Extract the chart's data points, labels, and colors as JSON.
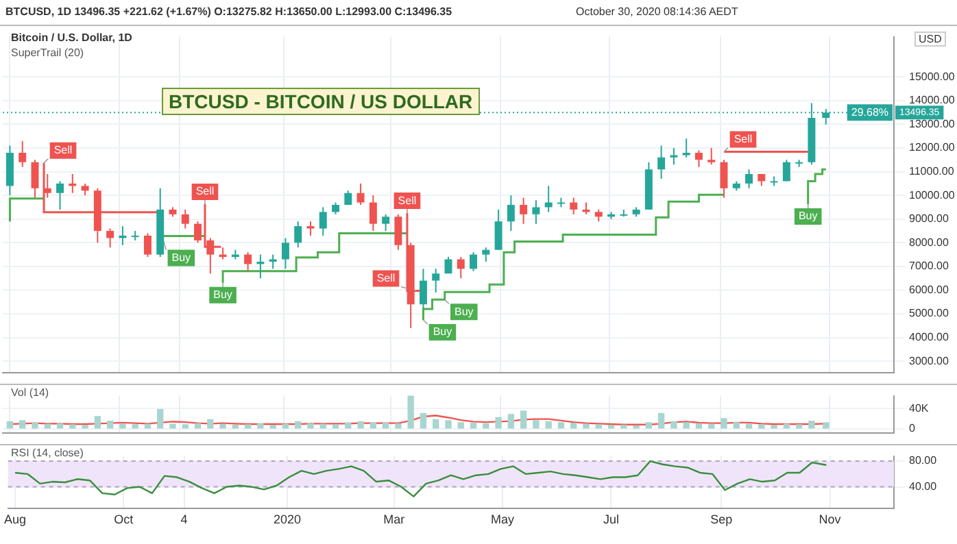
{
  "chart_data": [
    {
      "type": "candlestick",
      "title": "BTCUSD - BITCOIN / US DOLLAR",
      "subtitle": "Bitcoin / U.S. Dollar, 1D",
      "ylabel": "USD",
      "annotations": [
        "BTCUSD, 1D 13496.35 +221.62 (+1.67%) O:13275.82 H:13650.00 L:12993.00 C:13496.35",
        "October 30, 2020 08:14:36 AEDT",
        "SuperTrail (20)",
        {
          "text": "Sell",
          "x": "2019-08-20",
          "y": 11370
        },
        {
          "text": "Buy",
          "x": "2019-10-25",
          "y": 8280
        },
        {
          "text": "Sell",
          "x": "2019-11-18",
          "y": 9630
        },
        {
          "text": "Buy",
          "x": "2019-11-28",
          "y": 6310
        },
        {
          "text": "Sell",
          "x": "2020-03-10",
          "y": 9250
        },
        {
          "text": "Sell",
          "x": "2020-03-15",
          "y": 5970
        },
        {
          "text": "Buy",
          "x": "2020-03-19",
          "y": 4740
        },
        {
          "text": "Buy",
          "x": "2020-03-31",
          "y": 5600
        },
        {
          "text": "Sell",
          "x": "2020-09-03",
          "y": 11840
        },
        {
          "text": "Buy",
          "x": "2020-10-20",
          "y": 9630
        },
        {
          "text": "29.68%",
          "y": 13496.35
        }
      ],
      "x": [
        "2019-08-01",
        "2019-08-08",
        "2019-08-15",
        "2019-08-22",
        "2019-08-29",
        "2019-09-05",
        "2019-09-12",
        "2019-09-19",
        "2019-09-26",
        "2019-10-03",
        "2019-10-10",
        "2019-10-17",
        "2019-10-24",
        "2019-10-31",
        "2019-11-07",
        "2019-11-14",
        "2019-11-21",
        "2019-11-28",
        "2019-12-05",
        "2019-12-12",
        "2019-12-19",
        "2019-12-26",
        "2020-01-02",
        "2020-01-09",
        "2020-01-16",
        "2020-01-23",
        "2020-01-30",
        "2020-02-06",
        "2020-02-13",
        "2020-02-20",
        "2020-02-27",
        "2020-03-05",
        "2020-03-12",
        "2020-03-19",
        "2020-03-26",
        "2020-04-02",
        "2020-04-09",
        "2020-04-16",
        "2020-04-23",
        "2020-04-30",
        "2020-05-07",
        "2020-05-14",
        "2020-05-21",
        "2020-05-28",
        "2020-06-04",
        "2020-06-11",
        "2020-06-18",
        "2020-06-25",
        "2020-07-02",
        "2020-07-09",
        "2020-07-16",
        "2020-07-23",
        "2020-07-30",
        "2020-08-06",
        "2020-08-13",
        "2020-08-20",
        "2020-08-27",
        "2020-09-03",
        "2020-09-10",
        "2020-09-17",
        "2020-09-24",
        "2020-10-01",
        "2020-10-08",
        "2020-10-15",
        "2020-10-22",
        "2020-10-30"
      ],
      "ohlc": [
        [
          10400,
          12100,
          10000,
          11800
        ],
        [
          11800,
          12300,
          11200,
          11400
        ],
        [
          11400,
          11500,
          9900,
          10300
        ],
        [
          10300,
          10900,
          9900,
          10100
        ],
        [
          10100,
          10600,
          9400,
          10500
        ],
        [
          10500,
          10900,
          10100,
          10400
        ],
        [
          10400,
          10500,
          10000,
          10200
        ],
        [
          10200,
          10300,
          8000,
          8500
        ],
        [
          8500,
          8600,
          7800,
          8200
        ],
        [
          8200,
          8700,
          7900,
          8300
        ],
        [
          8300,
          8500,
          8100,
          8300
        ],
        [
          8300,
          8400,
          7400,
          7500
        ],
        [
          7500,
          10300,
          7400,
          9400
        ],
        [
          9400,
          9500,
          9100,
          9200
        ],
        [
          9200,
          9400,
          8600,
          8800
        ],
        [
          8800,
          8900,
          8000,
          8100
        ],
        [
          8100,
          8200,
          6700,
          7500
        ],
        [
          7500,
          7800,
          7300,
          7400
        ],
        [
          7400,
          7700,
          7300,
          7500
        ],
        [
          7500,
          7600,
          6800,
          7100
        ],
        [
          7100,
          7500,
          6500,
          7200
        ],
        [
          7200,
          7500,
          6900,
          7300
        ],
        [
          7300,
          8200,
          6900,
          8000
        ],
        [
          8000,
          8900,
          7800,
          8700
        ],
        [
          8700,
          8900,
          8300,
          8600
        ],
        [
          8600,
          9500,
          8300,
          9300
        ],
        [
          9300,
          9700,
          9200,
          9600
        ],
        [
          9600,
          10200,
          9600,
          10100
        ],
        [
          10100,
          10500,
          9600,
          9700
        ],
        [
          9700,
          10000,
          8500,
          8800
        ],
        [
          8800,
          9200,
          8500,
          9100
        ],
        [
          9100,
          9200,
          7700,
          7900
        ],
        [
          7900,
          8000,
          4400,
          5400
        ],
        [
          5400,
          6900,
          5200,
          6400
        ],
        [
          6400,
          6900,
          5900,
          6700
        ],
        [
          6700,
          7400,
          6700,
          7300
        ],
        [
          7300,
          7400,
          6500,
          6900
        ],
        [
          6900,
          7600,
          6800,
          7500
        ],
        [
          7500,
          7800,
          7200,
          7700
        ],
        [
          7700,
          9400,
          7700,
          8900
        ],
        [
          8900,
          10000,
          8500,
          9600
        ],
        [
          9600,
          9900,
          8800,
          9200
        ],
        [
          9200,
          9800,
          8800,
          9500
        ],
        [
          9500,
          10400,
          9300,
          9700
        ],
        [
          9700,
          9900,
          9500,
          9700
        ],
        [
          9700,
          9900,
          9200,
          9400
        ],
        [
          9400,
          9700,
          9200,
          9300
        ],
        [
          9300,
          9400,
          8900,
          9100
        ],
        [
          9100,
          9300,
          9000,
          9200
        ],
        [
          9200,
          9400,
          9100,
          9200
        ],
        [
          9200,
          9500,
          9100,
          9400
        ],
        [
          9400,
          11400,
          9400,
          11100
        ],
        [
          11100,
          12100,
          10700,
          11600
        ],
        [
          11600,
          12000,
          11300,
          11700
        ],
        [
          11700,
          12400,
          11600,
          11800
        ],
        [
          11800,
          11900,
          11200,
          11500
        ],
        [
          11500,
          12000,
          11300,
          11400
        ],
        [
          11400,
          11500,
          9900,
          10300
        ],
        [
          10300,
          10600,
          10200,
          10500
        ],
        [
          10500,
          11100,
          10300,
          10900
        ],
        [
          10900,
          10900,
          10400,
          10600
        ],
        [
          10600,
          10800,
          10400,
          10600
        ],
        [
          10600,
          11500,
          10600,
          11400
        ],
        [
          11400,
          11500,
          11200,
          11400
        ],
        [
          11400,
          13900,
          11300,
          13275.82
        ],
        [
          13275.82,
          13650,
          12993,
          13496.35
        ]
      ],
      "colors": [
        "#26a69a",
        "#ef5350",
        "#ef5350",
        "#ef5350",
        "#26a69a",
        "#ef5350",
        "#ef5350",
        "#ef5350",
        "#ef5350",
        "#26a69a",
        "#26a69a",
        "#ef5350",
        "#26a69a",
        "#ef5350",
        "#ef5350",
        "#ef5350",
        "#ef5350",
        "#ef5350",
        "#26a69a",
        "#ef5350",
        "#26a69a",
        "#26a69a",
        "#26a69a",
        "#26a69a",
        "#ef5350",
        "#26a69a",
        "#26a69a",
        "#26a69a",
        "#ef5350",
        "#ef5350",
        "#26a69a",
        "#ef5350",
        "#ef5350",
        "#26a69a",
        "#26a69a",
        "#26a69a",
        "#ef5350",
        "#26a69a",
        "#26a69a",
        "#26a69a",
        "#26a69a",
        "#ef5350",
        "#26a69a",
        "#26a69a",
        "#26a69a",
        "#ef5350",
        "#ef5350",
        "#ef5350",
        "#26a69a",
        "#26a69a",
        "#26a69a",
        "#26a69a",
        "#26a69a",
        "#26a69a",
        "#26a69a",
        "#ef5350",
        "#ef5350",
        "#ef5350",
        "#26a69a",
        "#26a69a",
        "#ef5350",
        "#26a69a",
        "#26a69a",
        "#26a69a",
        "#26a69a",
        "#26a69a"
      ],
      "series": [
        {
          "type": "step",
          "color": "#ef5350",
          "x": [
            "2019-08-20",
            "2019-09-24",
            "2019-10-24"
          ],
          "values": [
            11370,
            9290,
            9290
          ]
        },
        {
          "type": "step",
          "color": "#ef5350",
          "x": [
            "2019-11-18",
            "2019-11-21",
            "2019-11-27"
          ],
          "values": [
            9630,
            7830,
            7830
          ]
        },
        {
          "type": "step",
          "color": "#ef5350",
          "x": [
            "2020-03-10",
            "2020-03-13",
            "2020-03-19"
          ],
          "values": [
            9250,
            5970,
            5970
          ]
        },
        {
          "type": "step",
          "color": "#ef5350",
          "x": [
            "2020-09-03",
            "2020-10-20"
          ],
          "values": [
            11840,
            11840
          ]
        },
        {
          "type": "step",
          "color": "#4caf50",
          "x": [
            "2019-08-01",
            "2019-08-07",
            "2019-08-20",
            "2019-08-21",
            "2019-10-25",
            "2019-11-18",
            "2019-11-19",
            "2019-11-28",
            "2020-01-08",
            "2020-01-20",
            "2020-02-01",
            "2020-02-08",
            "2020-03-10",
            "2020-03-11",
            "2020-03-19",
            "2020-03-24",
            "2020-03-31",
            "2020-04-25",
            "2020-05-03",
            "2020-05-09",
            "2020-06-05",
            "2020-07-27",
            "2020-08-03",
            "2020-08-20",
            "2020-09-03",
            "2020-09-04",
            "2020-10-20",
            "2020-10-24",
            "2020-10-28",
            "2020-10-30"
          ],
          "values": [
            8900,
            9870,
            9870,
            null,
            8280,
            8280,
            null,
            6310,
            6800,
            7380,
            7600,
            8400,
            8400,
            null,
            4740,
            5200,
            5600,
            5920,
            6240,
            7600,
            8050,
            8340,
            9070,
            9740,
            10030,
            null,
            9630,
            10600,
            10900,
            11100
          ]
        }
      ],
      "ref_lines": [
        {
          "axis": "y",
          "value": 13496.35,
          "label": "13496.35",
          "color": "#26a69a",
          "line_style": "dotted"
        }
      ],
      "xlim": [
        "2019-07-28",
        "2020-12-07"
      ],
      "xticks": [
        {
          "value": "2019-08-01",
          "label": null
        },
        {
          "value": "2019-10-01",
          "label": null
        },
        {
          "value": "2019-11-04",
          "label": null
        },
        {
          "value": "2020-01-01",
          "label": null
        },
        {
          "value": "2020-03-01",
          "label": null
        },
        {
          "value": "2020-05-01",
          "label": null
        },
        {
          "value": "2020-07-01",
          "label": null
        },
        {
          "value": "2020-09-01",
          "label": null
        },
        {
          "value": "2020-11-01",
          "label": null
        }
      ],
      "ylim": [
        2500,
        16700
      ],
      "yticks": [
        {
          "value": 3000,
          "label": "3000.00"
        },
        {
          "value": 4000,
          "label": "4000.00"
        },
        {
          "value": 5000,
          "label": "5000.00"
        },
        {
          "value": 6000,
          "label": "6000.00"
        },
        {
          "value": 7000,
          "label": "7000.00"
        },
        {
          "value": 8000,
          "label": "8000.00"
        },
        {
          "value": 9000,
          "label": "9000.00"
        },
        {
          "value": 10000,
          "label": "10000.00"
        },
        {
          "value": 11000,
          "label": "11000.00"
        },
        {
          "value": 12000,
          "label": "12000.00"
        },
        {
          "value": 13000,
          "label": "13000.00"
        },
        {
          "value": 14000,
          "label": "14000.00"
        },
        {
          "value": 15000,
          "label": "15000.00"
        }
      ],
      "grid": true,
      "tick_labels": "y"
    },
    {
      "type": "bar",
      "title": "Vol (14)",
      "x": [
        "2019-08-01",
        "2019-08-08",
        "2019-08-15",
        "2019-08-22",
        "2019-08-29",
        "2019-09-05",
        "2019-09-12",
        "2019-09-19",
        "2019-09-26",
        "2019-10-03",
        "2019-10-10",
        "2019-10-17",
        "2019-10-24",
        "2019-10-31",
        "2019-11-07",
        "2019-11-14",
        "2019-11-21",
        "2019-11-28",
        "2019-12-05",
        "2019-12-12",
        "2019-12-19",
        "2019-12-26",
        "2020-01-02",
        "2020-01-09",
        "2020-01-16",
        "2020-01-23",
        "2020-01-30",
        "2020-02-06",
        "2020-02-13",
        "2020-02-20",
        "2020-02-27",
        "2020-03-05",
        "2020-03-12",
        "2020-03-19",
        "2020-03-26",
        "2020-04-02",
        "2020-04-09",
        "2020-04-16",
        "2020-04-23",
        "2020-04-30",
        "2020-05-07",
        "2020-05-14",
        "2020-05-21",
        "2020-05-28",
        "2020-06-04",
        "2020-06-11",
        "2020-06-18",
        "2020-06-25",
        "2020-07-02",
        "2020-07-09",
        "2020-07-16",
        "2020-07-23",
        "2020-07-30",
        "2020-08-06",
        "2020-08-13",
        "2020-08-20",
        "2020-08-27",
        "2020-09-03",
        "2020-09-10",
        "2020-09-17",
        "2020-09-24",
        "2020-10-01",
        "2020-10-08",
        "2020-10-15",
        "2020-10-22",
        "2020-10-30"
      ],
      "series": [
        {
          "type": "bar",
          "color": "#a8d5cf",
          "values": [
            14000,
            16000,
            11000,
            9000,
            10000,
            8000,
            7000,
            24000,
            15000,
            9000,
            8000,
            9000,
            38000,
            9000,
            8000,
            10000,
            18000,
            9000,
            7000,
            8000,
            10000,
            7000,
            9000,
            14000,
            10000,
            9000,
            8000,
            12000,
            14000,
            12000,
            11000,
            10000,
            65000,
            30000,
            18000,
            16000,
            12000,
            11000,
            10000,
            22000,
            28000,
            35000,
            16000,
            14000,
            12000,
            11000,
            9000,
            8000,
            7000,
            7000,
            6000,
            12000,
            30000,
            14000,
            12000,
            10000,
            9000,
            20000,
            12000,
            9000,
            8000,
            7000,
            9000,
            8000,
            15000,
            12000
          ]
        },
        {
          "type": "line",
          "color": "#ef5350",
          "values": [
            9000,
            10000,
            11000,
            10000,
            10000,
            9000,
            9000,
            10000,
            11000,
            12000,
            11000,
            10000,
            12000,
            14000,
            13000,
            11000,
            10000,
            11000,
            10000,
            9000,
            9000,
            9000,
            9000,
            9000,
            10000,
            10000,
            10000,
            10000,
            11000,
            11000,
            11000,
            11000,
            16000,
            24000,
            26000,
            22000,
            17000,
            14000,
            13000,
            14000,
            15000,
            18000,
            19000,
            19000,
            16000,
            13000,
            11000,
            10000,
            9000,
            8000,
            8000,
            8000,
            10000,
            13000,
            14000,
            12000,
            11000,
            11000,
            12000,
            12000,
            10000,
            9000,
            9000,
            9000,
            9000,
            10000
          ]
        }
      ],
      "xlim": [
        "2019-07-28",
        "2020-12-07"
      ],
      "xticks": [
        {
          "value": "2019-08-01",
          "label": null
        },
        {
          "value": "2019-10-01",
          "label": null
        },
        {
          "value": "2019-11-04",
          "label": null
        },
        {
          "value": "2020-01-01",
          "label": null
        },
        {
          "value": "2020-03-01",
          "label": null
        },
        {
          "value": "2020-05-01",
          "label": null
        },
        {
          "value": "2020-07-01",
          "label": null
        },
        {
          "value": "2020-09-01",
          "label": null
        },
        {
          "value": "2020-11-01",
          "label": null
        }
      ],
      "ylim": [
        -9000,
        65000
      ],
      "yticks": [
        0,
        {
          "value": 40000,
          "label": "40K"
        }
      ],
      "grid": true,
      "tick_labels": "y"
    },
    {
      "type": "line",
      "title": "RSI (14, close)",
      "x": [
        "2019-08-01",
        "2019-08-08",
        "2019-08-15",
        "2019-08-22",
        "2019-08-29",
        "2019-09-05",
        "2019-09-12",
        "2019-09-19",
        "2019-09-26",
        "2019-10-03",
        "2019-10-10",
        "2019-10-17",
        "2019-10-24",
        "2019-10-31",
        "2019-11-07",
        "2019-11-14",
        "2019-11-21",
        "2019-11-28",
        "2019-12-05",
        "2019-12-12",
        "2019-12-19",
        "2019-12-26",
        "2020-01-02",
        "2020-01-09",
        "2020-01-16",
        "2020-01-23",
        "2020-01-30",
        "2020-02-06",
        "2020-02-13",
        "2020-02-20",
        "2020-02-27",
        "2020-03-05",
        "2020-03-12",
        "2020-03-19",
        "2020-03-26",
        "2020-04-02",
        "2020-04-09",
        "2020-04-16",
        "2020-04-23",
        "2020-04-30",
        "2020-05-07",
        "2020-05-14",
        "2020-05-21",
        "2020-05-28",
        "2020-06-04",
        "2020-06-11",
        "2020-06-18",
        "2020-06-25",
        "2020-07-02",
        "2020-07-09",
        "2020-07-16",
        "2020-07-23",
        "2020-07-30",
        "2020-08-06",
        "2020-08-13",
        "2020-08-20",
        "2020-08-27",
        "2020-09-03",
        "2020-09-10",
        "2020-09-17",
        "2020-09-24",
        "2020-10-01",
        "2020-10-08",
        "2020-10-15",
        "2020-10-22",
        "2020-10-30"
      ],
      "series": [
        {
          "color": "#388e3c",
          "values": [
            62,
            60,
            45,
            48,
            47,
            52,
            50,
            30,
            28,
            38,
            40,
            30,
            57,
            55,
            48,
            38,
            30,
            40,
            42,
            40,
            36,
            42,
            55,
            65,
            60,
            65,
            68,
            72,
            65,
            48,
            50,
            40,
            25,
            45,
            50,
            58,
            52,
            58,
            60,
            68,
            72,
            60,
            62,
            64,
            60,
            58,
            55,
            52,
            55,
            55,
            58,
            80,
            75,
            72,
            70,
            62,
            60,
            35,
            45,
            52,
            48,
            50,
            62,
            62,
            78,
            74
          ]
        }
      ],
      "bands": [
        {
          "axis": "y",
          "from": 40,
          "to": 80,
          "color": "#f0e4fa"
        }
      ],
      "xlim": [
        "2019-07-28",
        "2020-12-07"
      ],
      "xticks": [
        {
          "value": "2019-08-01",
          "label": "Aug"
        },
        {
          "value": "2019-10-01",
          "label": "Oct"
        },
        {
          "value": "2019-11-04",
          "label": "4"
        },
        {
          "value": "2020-01-01",
          "label": "2020"
        },
        {
          "value": "2020-03-01",
          "label": "Mar"
        },
        {
          "value": "2020-05-01",
          "label": "May"
        },
        {
          "value": "2020-07-01",
          "label": "Jul"
        },
        {
          "value": "2020-09-01",
          "label": "Sep"
        },
        {
          "value": "2020-11-01",
          "label": "Nov"
        }
      ],
      "ylim": [
        6,
        88
      ],
      "yticks": [
        {
          "value": 40,
          "label": "40.00"
        },
        {
          "value": 80,
          "label": "80.00"
        }
      ],
      "grid": true
    }
  ]
}
